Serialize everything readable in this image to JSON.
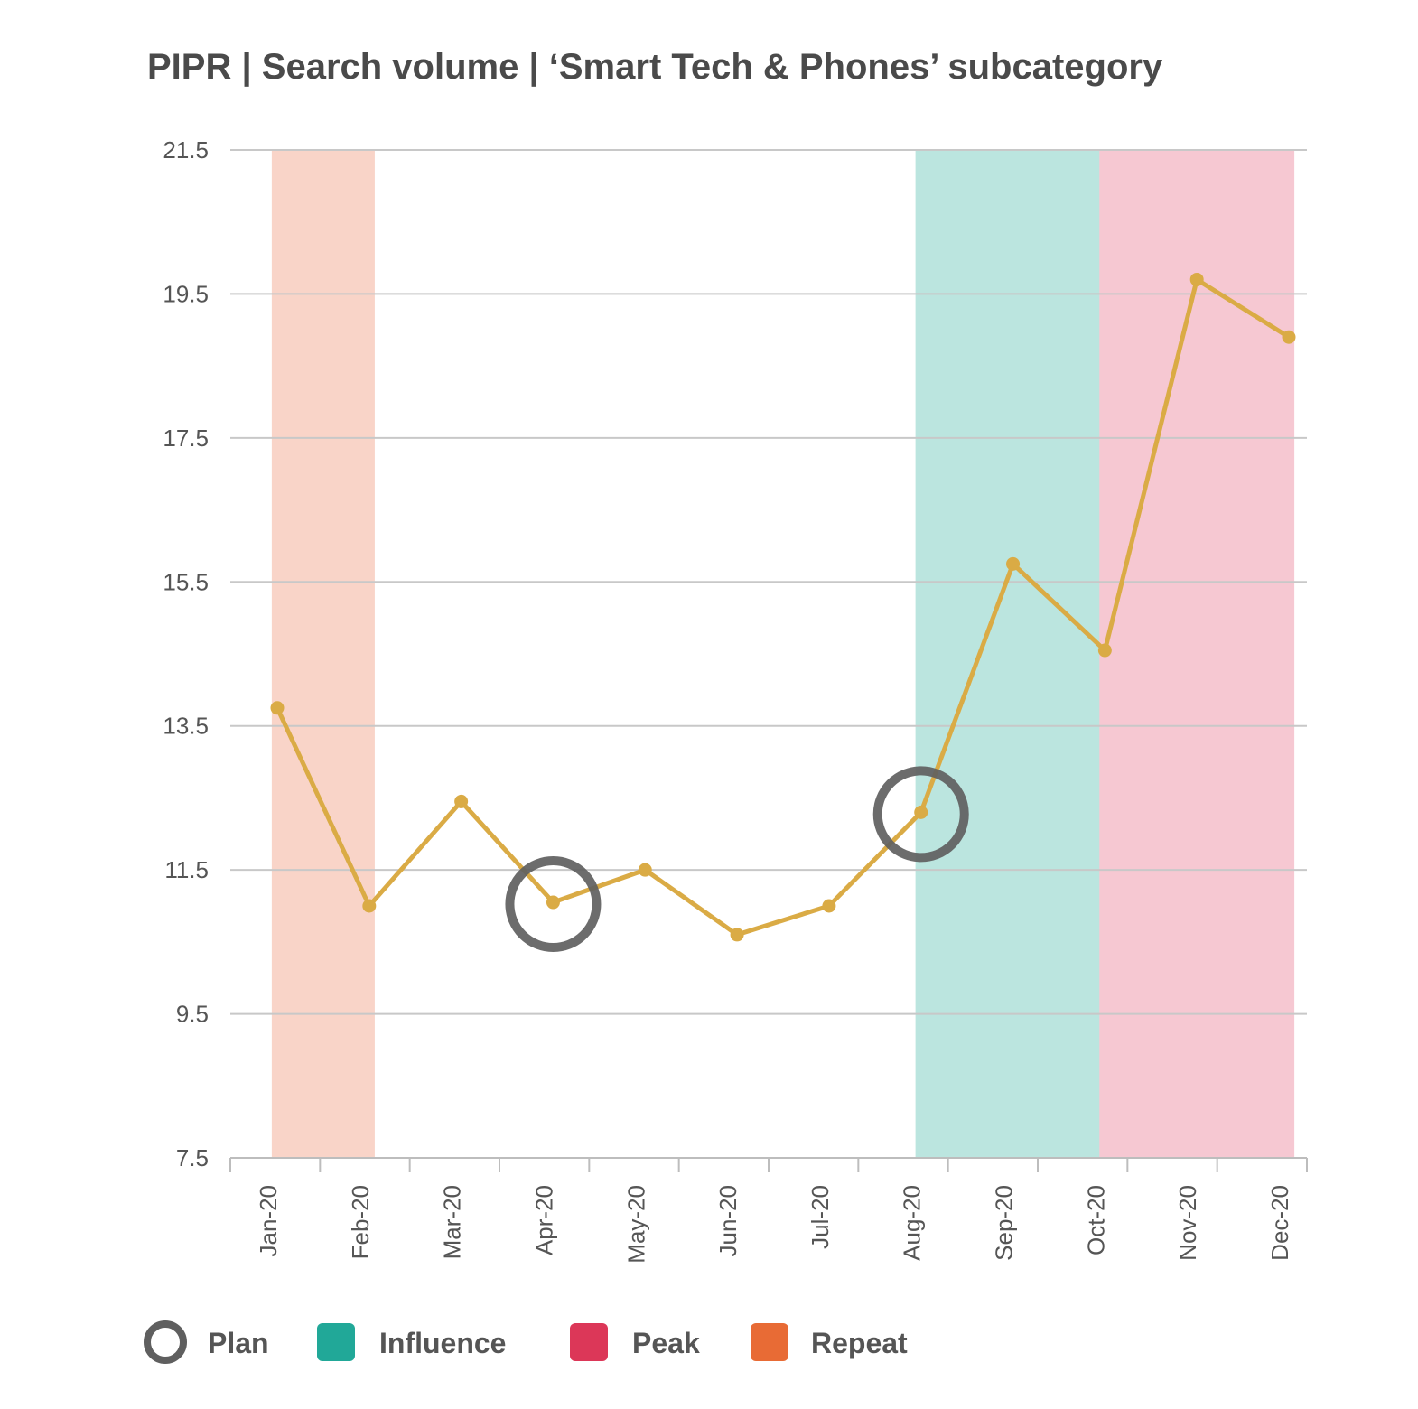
{
  "chart_data": {
    "type": "line",
    "title": "PIPR | Search volume | ‘Smart Tech & Phones’ subcategory",
    "xlabel": "",
    "ylabel": "",
    "ylim": [
      7.5,
      21.5
    ],
    "yticks": [
      "21.5",
      "19.5",
      "17.5",
      "15.5",
      "13.5",
      "11.5",
      "9.5",
      "7.5"
    ],
    "categories": [
      "Jan-20",
      "Feb-20",
      "Mar-20",
      "Apr-20",
      "May-20",
      "Jun-20",
      "Jul-20",
      "Aug-20",
      "Sep-20",
      "Oct-20",
      "Nov-20",
      "Dec-20"
    ],
    "series": [
      {
        "values": [
          13.75,
          11.0,
          12.45,
          11.05,
          11.5,
          10.6,
          11.0,
          12.3,
          15.75,
          14.55,
          19.7,
          18.9
        ],
        "color": "#DAAB45"
      }
    ],
    "bands": [
      {
        "label": "Repeat",
        "from_index": 0,
        "to_index": 1,
        "color": "#F9D4C8"
      },
      {
        "label": "Influence",
        "from_index": 7,
        "to_index": 9,
        "color": "#BBE5DF"
      },
      {
        "label": "Peak",
        "from_index": 9,
        "to_index": 11,
        "color": "#F6C8D2"
      }
    ],
    "markers": [
      {
        "label": "Plan",
        "index": 3
      },
      {
        "label": "Plan",
        "index": 7
      }
    ],
    "grid": true,
    "legend": {
      "position": "bottom-left",
      "items": [
        {
          "label": "Plan",
          "shape": "ring",
          "color": "#5F5F5F"
        },
        {
          "label": "Influence",
          "shape": "square",
          "color": "#21A898"
        },
        {
          "label": "Peak",
          "shape": "square",
          "color": "#DC3758"
        },
        {
          "label": "Repeat",
          "shape": "square",
          "color": "#E86B35"
        }
      ]
    }
  }
}
